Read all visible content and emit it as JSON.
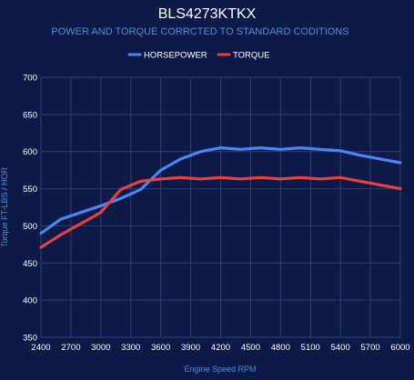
{
  "chart_data": {
    "type": "line",
    "title": "BLS4273KTKX",
    "subtitle": "POWER AND TORQUE CORRCTED TO STANDARD CODITIONS",
    "xlabel": "Engine Speed RPM",
    "ylabel": "Torque FT-LBS / HOR",
    "xlim": [
      2400,
      6000
    ],
    "ylim": [
      350,
      700
    ],
    "x_ticks": [
      2400,
      2700,
      3000,
      3300,
      3600,
      3900,
      4200,
      4500,
      4800,
      5100,
      5400,
      5700,
      6000
    ],
    "y_ticks": [
      350,
      400,
      450,
      500,
      550,
      600,
      650,
      700
    ],
    "x_tick_labels": [
      "2400",
      "2700",
      "3000",
      "3300",
      "3600",
      "3900",
      "4200",
      "4500",
      "4800",
      "5100",
      "5400",
      "5700",
      "6000"
    ],
    "y_tick_labels": [
      "350",
      "400",
      "450",
      "500",
      "550",
      "600",
      "650",
      "700"
    ],
    "grid": true,
    "legend_position": "top-center",
    "series": [
      {
        "name": "HORSEPOWER",
        "color": "#4a86f0",
        "x": [
          2400,
          2600,
          2800,
          3000,
          3200,
          3400,
          3600,
          3800,
          4000,
          4200,
          4400,
          4600,
          4800,
          5000,
          5200,
          5400,
          5600,
          5800,
          6000
        ],
        "values": [
          490,
          509,
          518,
          527,
          537,
          549,
          575,
          590,
          600,
          605,
          603,
          605,
          603,
          605,
          603,
          601,
          595,
          590,
          585
        ]
      },
      {
        "name": "TORQUE",
        "color": "#e84040",
        "x": [
          2400,
          2600,
          2800,
          3000,
          3200,
          3400,
          3600,
          3800,
          4000,
          4200,
          4400,
          4600,
          4800,
          5000,
          5200,
          5400,
          5600,
          5800,
          6000
        ],
        "values": [
          471,
          488,
          503,
          518,
          549,
          560,
          563,
          565,
          563,
          565,
          563,
          565,
          563,
          565,
          563,
          565,
          560,
          555,
          550
        ]
      }
    ]
  }
}
